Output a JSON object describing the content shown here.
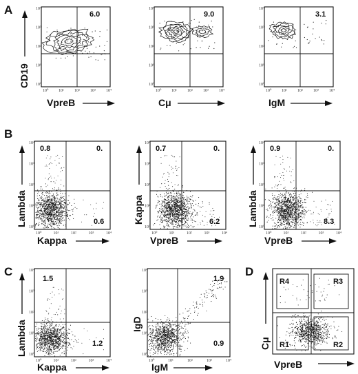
{
  "panels": [
    {
      "letter": "A"
    },
    {
      "letter": "B"
    },
    {
      "letter": "C"
    },
    {
      "letter": "D"
    }
  ],
  "tick_labels": [
    "10⁰",
    "10¹",
    "10²",
    "10³",
    "10⁴"
  ],
  "chart_data": [
    {
      "panel": "A",
      "type": "scatter",
      "style": "contour",
      "xlabel": "VpreB",
      "ylabel": "CD19",
      "quadrant_values": {
        "upper_right": "6.0"
      },
      "x_scale": "log",
      "y_scale": "log",
      "xlim": [
        1,
        10000
      ],
      "ylim": [
        1,
        10000
      ]
    },
    {
      "panel": "A",
      "type": "scatter",
      "style": "contour",
      "xlabel": "Cμ",
      "ylabel": "",
      "quadrant_values": {
        "upper_right": "9.0"
      },
      "x_scale": "log",
      "y_scale": "log",
      "xlim": [
        1,
        10000
      ],
      "ylim": [
        1,
        10000
      ]
    },
    {
      "panel": "A",
      "type": "scatter",
      "style": "contour",
      "xlabel": "IgM",
      "ylabel": "",
      "quadrant_values": {
        "upper_right": "3.1"
      },
      "x_scale": "log",
      "y_scale": "log",
      "xlim": [
        1,
        10000
      ],
      "ylim": [
        1,
        10000
      ]
    },
    {
      "panel": "B",
      "type": "scatter",
      "xlabel": "Kappa",
      "ylabel": "Lambda",
      "quadrant_values": {
        "upper_left": "0.8",
        "upper_right": "0.",
        "lower_right": "0.6"
      },
      "x_scale": "log",
      "y_scale": "log",
      "xlim": [
        1,
        10000
      ],
      "ylim": [
        1,
        10000
      ]
    },
    {
      "panel": "B",
      "type": "scatter",
      "xlabel": "VpreB",
      "ylabel": "Kappa",
      "quadrant_values": {
        "upper_left": "0.7",
        "upper_right": "0.",
        "lower_right": "6.2"
      },
      "x_scale": "log",
      "y_scale": "log",
      "xlim": [
        1,
        10000
      ],
      "ylim": [
        1,
        10000
      ]
    },
    {
      "panel": "B",
      "type": "scatter",
      "xlabel": "VpreB",
      "ylabel": "Lambda",
      "quadrant_values": {
        "upper_left": "0.9",
        "upper_right": "0.",
        "lower_right": "8.3"
      },
      "x_scale": "log",
      "y_scale": "log",
      "xlim": [
        1,
        10000
      ],
      "ylim": [
        1,
        10000
      ]
    },
    {
      "panel": "C",
      "type": "scatter",
      "xlabel": "Kappa",
      "ylabel": "Lambda",
      "quadrant_values": {
        "upper_left": "1.5",
        "lower_right": "1.2"
      },
      "x_scale": "log",
      "y_scale": "log",
      "xlim": [
        1,
        10000
      ],
      "ylim": [
        1,
        10000
      ]
    },
    {
      "panel": "C",
      "type": "scatter",
      "xlabel": "IgM",
      "ylabel": "IgD",
      "quadrant_values": {
        "upper_right": "1.9",
        "lower_right": "0.9"
      },
      "x_scale": "log",
      "y_scale": "log",
      "xlim": [
        1,
        10000
      ],
      "ylim": [
        1,
        10000
      ]
    },
    {
      "panel": "D",
      "type": "scatter",
      "xlabel": "VpreB",
      "ylabel": "Cμ",
      "regions": [
        "R1",
        "R2",
        "R3",
        "R4"
      ],
      "x_scale": "log",
      "y_scale": "log",
      "xlim": [
        1,
        10000
      ],
      "ylim": [
        1,
        10000
      ]
    }
  ]
}
